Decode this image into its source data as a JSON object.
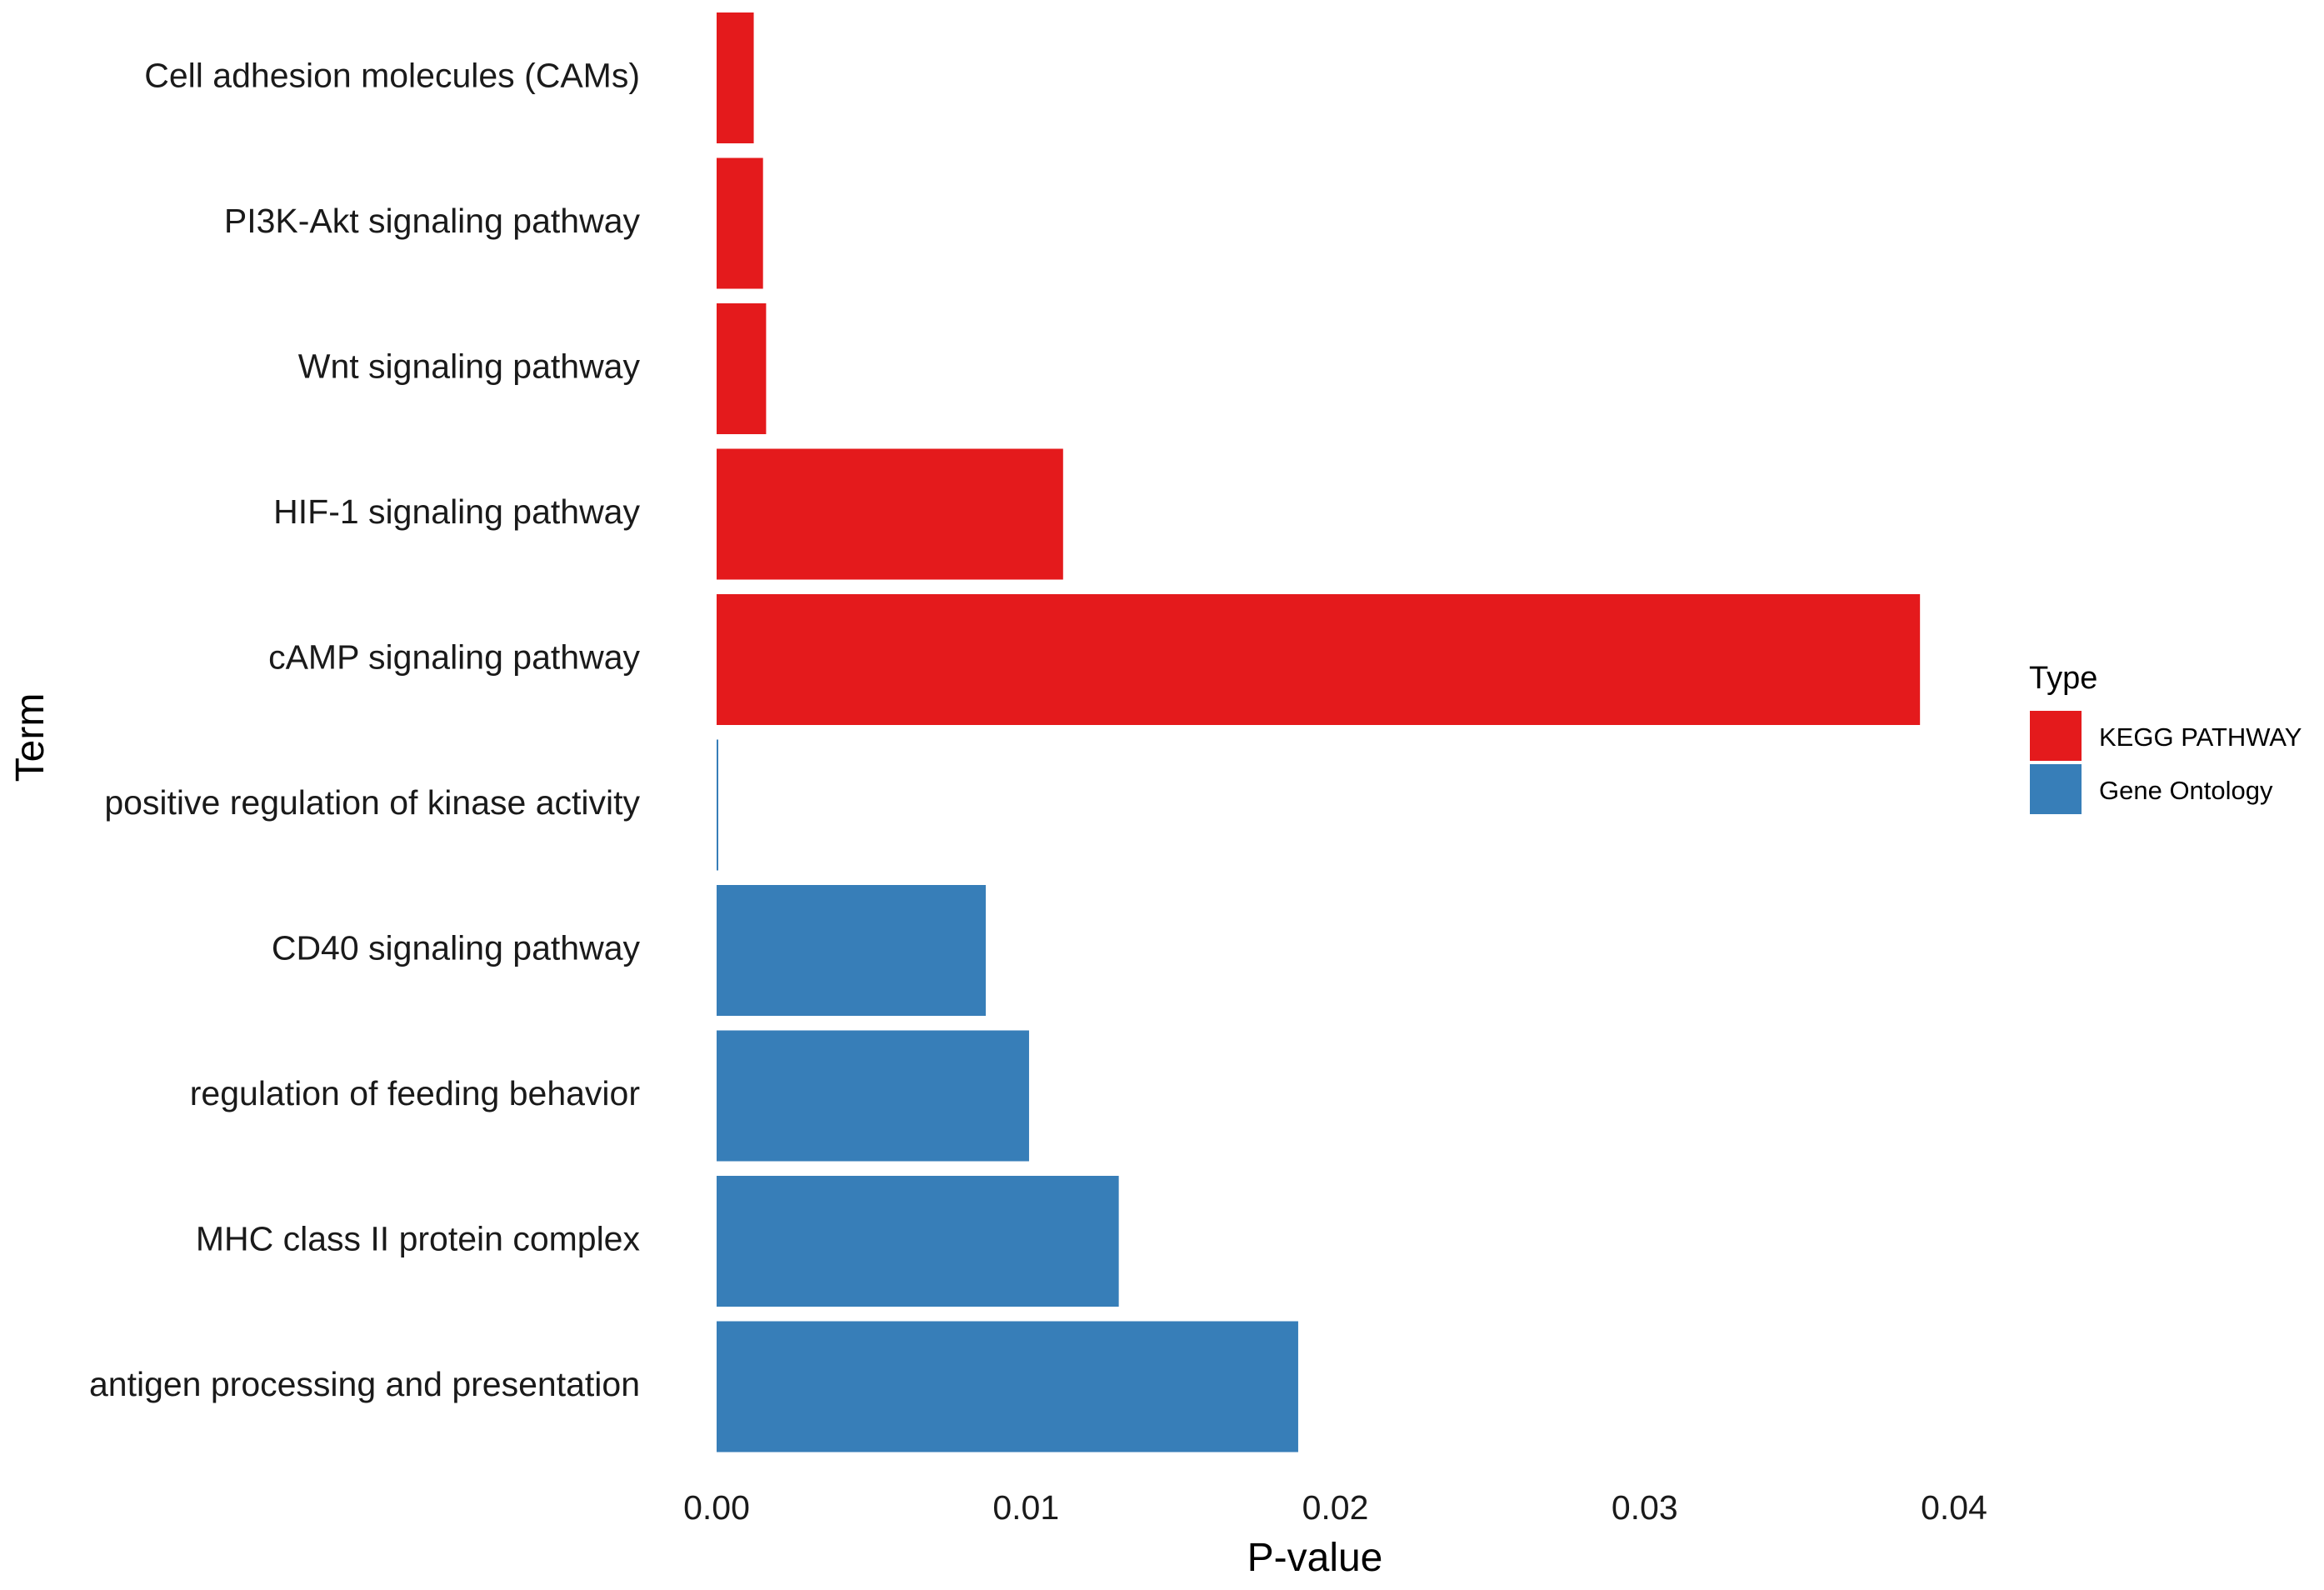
{
  "chart_data": {
    "type": "bar",
    "orientation": "horizontal",
    "xlabel": "P-value",
    "ylabel": "Term",
    "xlim": [
      0,
      0.04
    ],
    "x_ticks": [
      0.0,
      0.01,
      0.02,
      0.03,
      0.04
    ],
    "x_tick_labels": [
      "0.00",
      "0.01",
      "0.02",
      "0.03",
      "0.04"
    ],
    "grid": false,
    "legend": {
      "title": "Type",
      "position": "right",
      "entries": [
        {
          "label": "KEGG PATHWAY",
          "color": "#E41A1C"
        },
        {
          "label": "Gene Ontology",
          "color": "#377EB8"
        }
      ]
    },
    "bars": [
      {
        "term": "Cell adhesion molecules (CAMs)",
        "value": 0.0012,
        "type": "KEGG PATHWAY"
      },
      {
        "term": "PI3K-Akt signaling pathway",
        "value": 0.0015,
        "type": "KEGG PATHWAY"
      },
      {
        "term": "Wnt signaling pathway",
        "value": 0.0016,
        "type": "KEGG PATHWAY"
      },
      {
        "term": "HIF-1 signaling pathway",
        "value": 0.0112,
        "type": "KEGG PATHWAY"
      },
      {
        "term": "cAMP signaling pathway",
        "value": 0.0389,
        "type": "KEGG PATHWAY"
      },
      {
        "term": "positive regulation of kinase activity",
        "value": 3e-05,
        "type": "Gene Ontology"
      },
      {
        "term": "CD40 signaling pathway",
        "value": 0.0087,
        "type": "Gene Ontology"
      },
      {
        "term": "regulation of feeding behavior",
        "value": 0.0101,
        "type": "Gene Ontology"
      },
      {
        "term": "MHC class II protein complex",
        "value": 0.013,
        "type": "Gene Ontology"
      },
      {
        "term": "antigen processing and presentation",
        "value": 0.0188,
        "type": "Gene Ontology"
      }
    ]
  }
}
